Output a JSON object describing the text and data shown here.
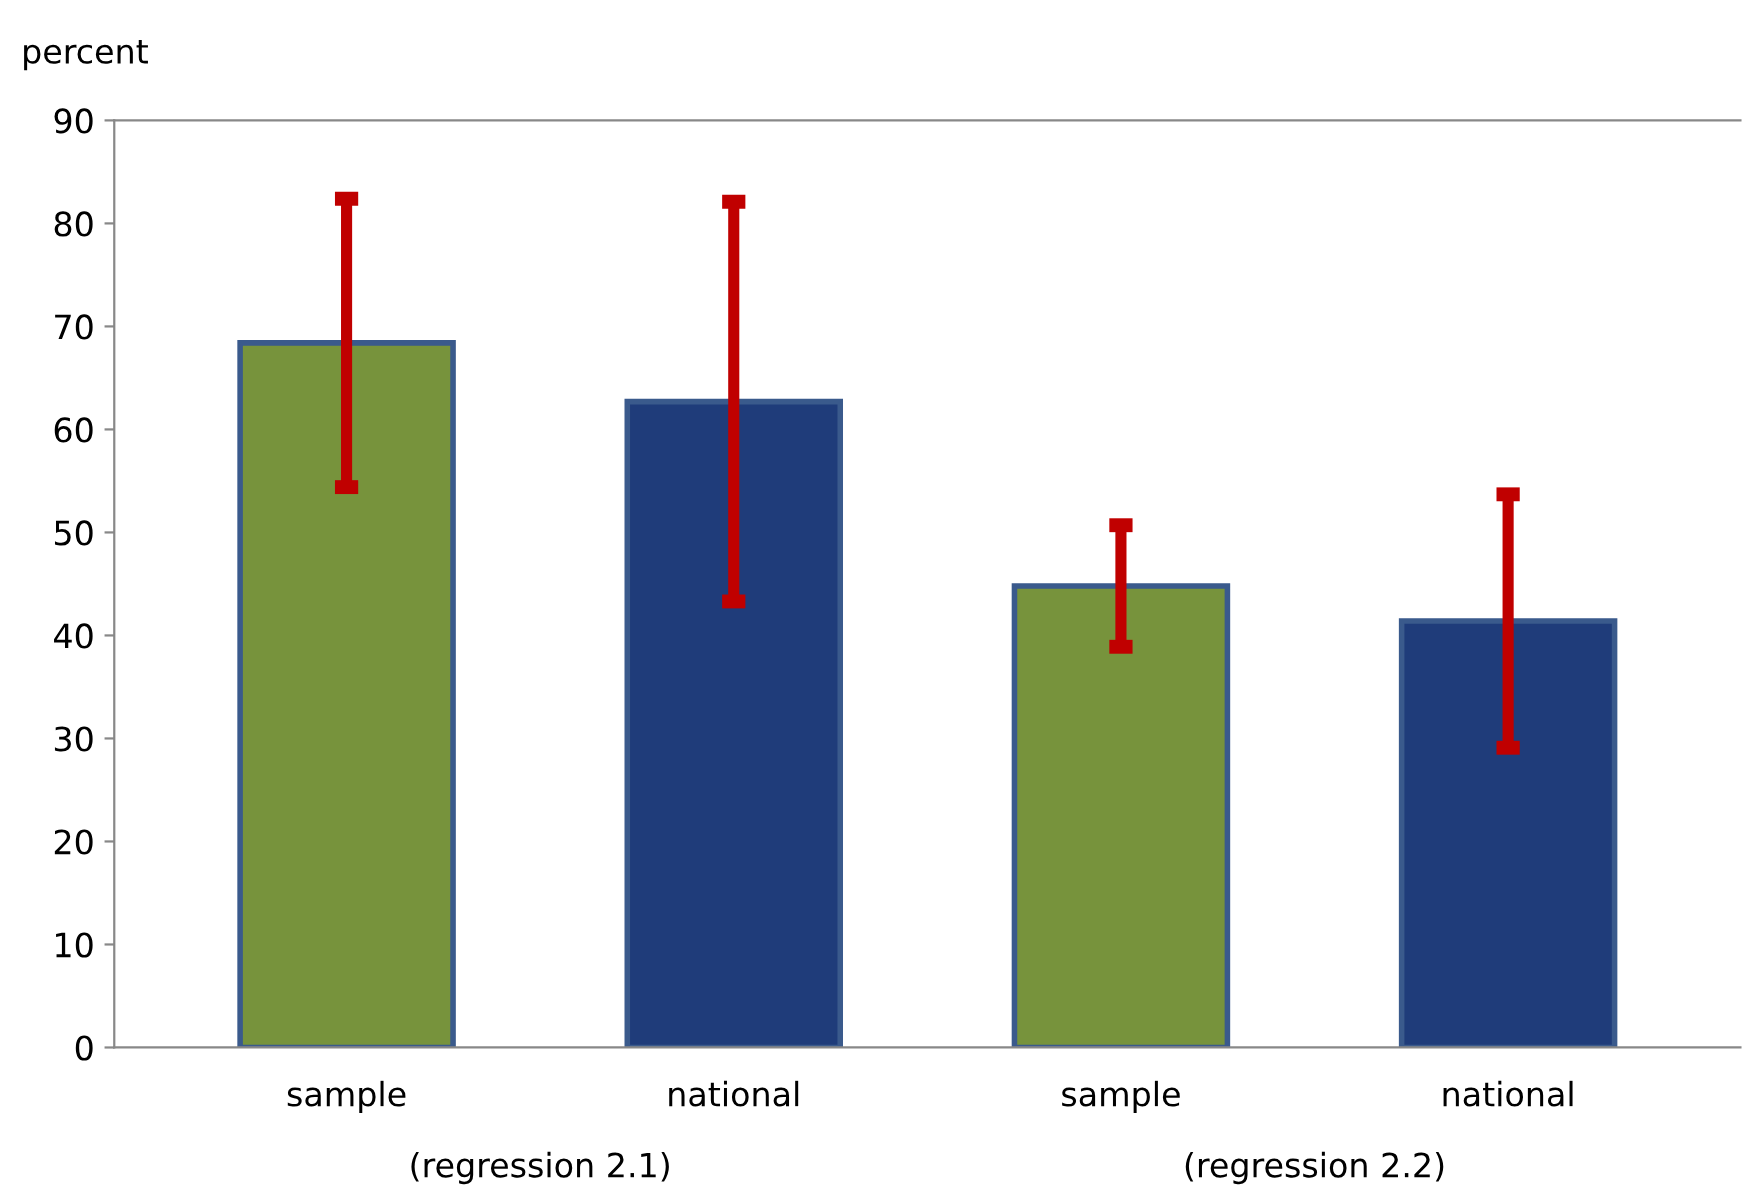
{
  "chart_data": {
    "type": "bar",
    "ylabel": "percent",
    "categories": [
      "sample",
      "national",
      "sample",
      "national"
    ],
    "values": [
      68.4,
      62.7,
      44.8,
      41.4
    ],
    "colors": [
      "#77933c",
      "#1f3c7a",
      "#77933c",
      "#1f3c7a"
    ],
    "errors": [
      14.0,
      19.4,
      5.9,
      12.3
    ],
    "ylim": [
      0,
      90
    ],
    "yticks": [
      0,
      10,
      20,
      30,
      40,
      50,
      60,
      70,
      80,
      90
    ],
    "annotations": [
      "(regression 2.1)",
      "(regression 2.2)"
    ],
    "grid": false
  }
}
